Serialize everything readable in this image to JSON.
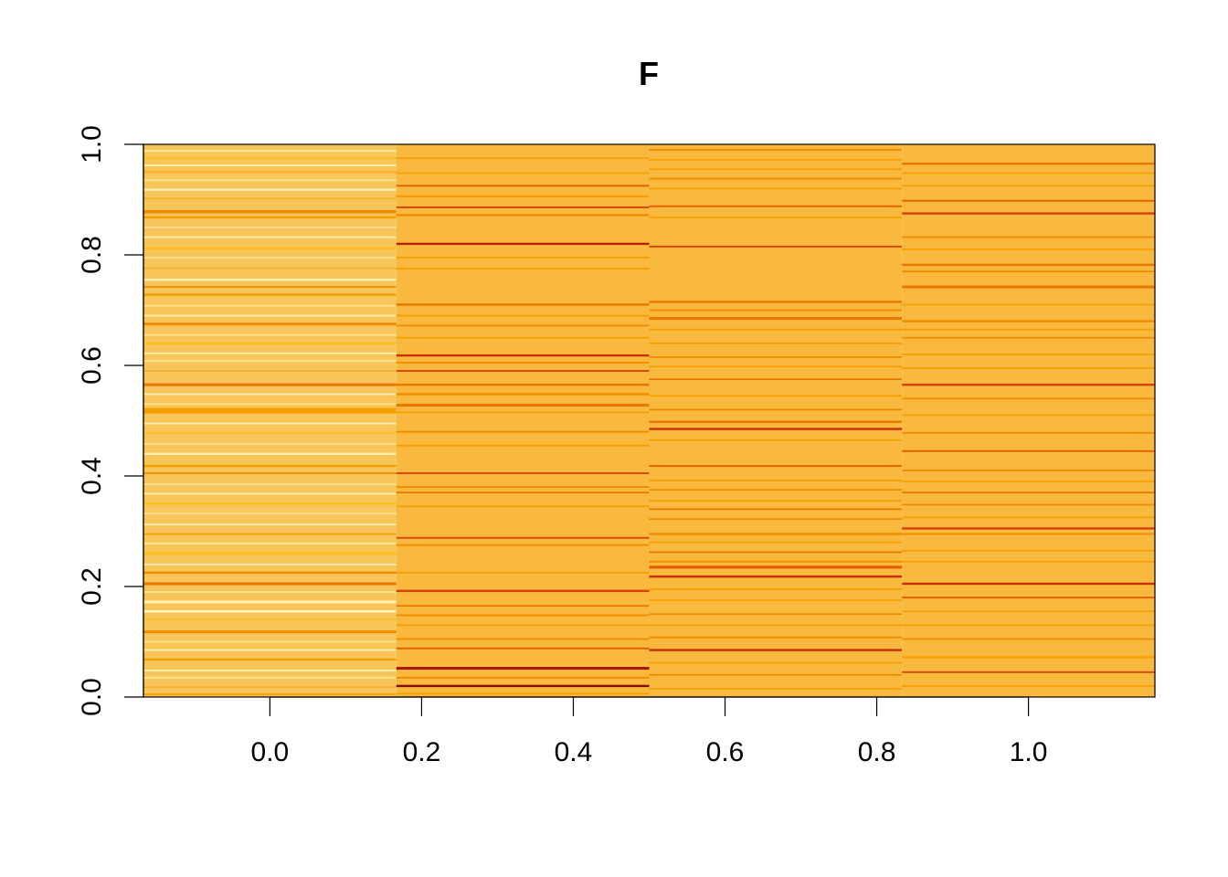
{
  "chart_data": {
    "type": "heatmap",
    "title": "F",
    "xlabel": "",
    "ylabel": "",
    "xlim": [
      -0.1667,
      1.1667
    ],
    "ylim": [
      0.0,
      1.0
    ],
    "x_ticks": [
      0.0,
      0.2,
      0.4,
      0.6,
      0.8,
      1.0
    ],
    "x_tick_labels": [
      "0.0",
      "0.2",
      "0.4",
      "0.6",
      "0.8",
      "1.0"
    ],
    "y_ticks": [
      0.0,
      0.2,
      0.4,
      0.6,
      0.8,
      1.0
    ],
    "y_tick_labels": [
      "0.0",
      "0.2",
      "0.4",
      "0.6",
      "0.8",
      "1.0"
    ],
    "columns": [
      {
        "x_from": -0.1667,
        "x_to": 0.1667,
        "base_color": "#F8C55A",
        "stripes": [
          {
            "y": 0.988,
            "h": 0.004,
            "color": "#FFE38A"
          },
          {
            "y": 0.975,
            "h": 0.004,
            "color": "#F9C020"
          },
          {
            "y": 0.962,
            "h": 0.003,
            "color": "#FFF0B0"
          },
          {
            "y": 0.95,
            "h": 0.004,
            "color": "#F8B030"
          },
          {
            "y": 0.935,
            "h": 0.003,
            "color": "#FFE38A"
          },
          {
            "y": 0.918,
            "h": 0.004,
            "color": "#FFF0B0"
          },
          {
            "y": 0.902,
            "h": 0.003,
            "color": "#F8B030"
          },
          {
            "y": 0.878,
            "h": 0.006,
            "color": "#F08C00"
          },
          {
            "y": 0.868,
            "h": 0.004,
            "color": "#F5A000"
          },
          {
            "y": 0.85,
            "h": 0.003,
            "color": "#FFE38A"
          },
          {
            "y": 0.832,
            "h": 0.003,
            "color": "#FFF0B0"
          },
          {
            "y": 0.812,
            "h": 0.004,
            "color": "#F9C020"
          },
          {
            "y": 0.795,
            "h": 0.003,
            "color": "#FFE38A"
          },
          {
            "y": 0.776,
            "h": 0.003,
            "color": "#F8B030"
          },
          {
            "y": 0.755,
            "h": 0.004,
            "color": "#FFF0B0"
          },
          {
            "y": 0.742,
            "h": 0.003,
            "color": "#F08C00"
          },
          {
            "y": 0.728,
            "h": 0.004,
            "color": "#F5A000"
          },
          {
            "y": 0.708,
            "h": 0.003,
            "color": "#FFE38A"
          },
          {
            "y": 0.69,
            "h": 0.003,
            "color": "#FFF0B0"
          },
          {
            "y": 0.675,
            "h": 0.005,
            "color": "#F08C00"
          },
          {
            "y": 0.655,
            "h": 0.003,
            "color": "#FFE38A"
          },
          {
            "y": 0.64,
            "h": 0.004,
            "color": "#F9C020"
          },
          {
            "y": 0.622,
            "h": 0.003,
            "color": "#FFF0B0"
          },
          {
            "y": 0.608,
            "h": 0.003,
            "color": "#FFE38A"
          },
          {
            "y": 0.59,
            "h": 0.003,
            "color": "#F8B030"
          },
          {
            "y": 0.565,
            "h": 0.005,
            "color": "#E87800"
          },
          {
            "y": 0.548,
            "h": 0.003,
            "color": "#FFF0B0"
          },
          {
            "y": 0.53,
            "h": 0.003,
            "color": "#FFE38A"
          },
          {
            "y": 0.518,
            "h": 0.01,
            "color": "#F5A000"
          },
          {
            "y": 0.495,
            "h": 0.003,
            "color": "#FFF0B0"
          },
          {
            "y": 0.478,
            "h": 0.003,
            "color": "#F9C020"
          },
          {
            "y": 0.458,
            "h": 0.003,
            "color": "#FFE38A"
          },
          {
            "y": 0.44,
            "h": 0.004,
            "color": "#FFF0B0"
          },
          {
            "y": 0.418,
            "h": 0.004,
            "color": "#F5A000"
          },
          {
            "y": 0.405,
            "h": 0.003,
            "color": "#F08C00"
          },
          {
            "y": 0.385,
            "h": 0.003,
            "color": "#FFE38A"
          },
          {
            "y": 0.368,
            "h": 0.003,
            "color": "#FFF0B0"
          },
          {
            "y": 0.35,
            "h": 0.004,
            "color": "#F9C020"
          },
          {
            "y": 0.332,
            "h": 0.003,
            "color": "#FFE38A"
          },
          {
            "y": 0.312,
            "h": 0.003,
            "color": "#FFF0B0"
          },
          {
            "y": 0.295,
            "h": 0.003,
            "color": "#F5A000"
          },
          {
            "y": 0.278,
            "h": 0.004,
            "color": "#FFE38A"
          },
          {
            "y": 0.26,
            "h": 0.006,
            "color": "#F9C020"
          },
          {
            "y": 0.24,
            "h": 0.003,
            "color": "#FFF0B0"
          },
          {
            "y": 0.225,
            "h": 0.004,
            "color": "#F08C00"
          },
          {
            "y": 0.205,
            "h": 0.005,
            "color": "#E87800"
          },
          {
            "y": 0.19,
            "h": 0.003,
            "color": "#FFE38A"
          },
          {
            "y": 0.172,
            "h": 0.005,
            "color": "#FFF0B0"
          },
          {
            "y": 0.155,
            "h": 0.004,
            "color": "#FFF5C8"
          },
          {
            "y": 0.14,
            "h": 0.003,
            "color": "#F9C020"
          },
          {
            "y": 0.118,
            "h": 0.005,
            "color": "#F08C00"
          },
          {
            "y": 0.1,
            "h": 0.003,
            "color": "#FFE38A"
          },
          {
            "y": 0.085,
            "h": 0.003,
            "color": "#FFF0B0"
          },
          {
            "y": 0.068,
            "h": 0.004,
            "color": "#F5A000"
          },
          {
            "y": 0.048,
            "h": 0.003,
            "color": "#FFF0B0"
          },
          {
            "y": 0.035,
            "h": 0.004,
            "color": "#FFE38A"
          },
          {
            "y": 0.018,
            "h": 0.003,
            "color": "#F8B030"
          },
          {
            "y": 0.005,
            "h": 0.003,
            "color": "#F5A000"
          }
        ]
      },
      {
        "x_from": 0.1667,
        "x_to": 0.5,
        "base_color": "#F8B93E",
        "stripes": [
          {
            "y": 0.975,
            "h": 0.003,
            "color": "#F5A000"
          },
          {
            "y": 0.948,
            "h": 0.003,
            "color": "#F5A000"
          },
          {
            "y": 0.925,
            "h": 0.003,
            "color": "#E85A00"
          },
          {
            "y": 0.906,
            "h": 0.004,
            "color": "#F5A000"
          },
          {
            "y": 0.886,
            "h": 0.003,
            "color": "#D84000"
          },
          {
            "y": 0.872,
            "h": 0.004,
            "color": "#F08C00"
          },
          {
            "y": 0.82,
            "h": 0.004,
            "color": "#B82000"
          },
          {
            "y": 0.795,
            "h": 0.003,
            "color": "#F5A000"
          },
          {
            "y": 0.775,
            "h": 0.003,
            "color": "#F5A000"
          },
          {
            "y": 0.71,
            "h": 0.004,
            "color": "#E87800"
          },
          {
            "y": 0.69,
            "h": 0.003,
            "color": "#F5A000"
          },
          {
            "y": 0.672,
            "h": 0.003,
            "color": "#F08C00"
          },
          {
            "y": 0.65,
            "h": 0.003,
            "color": "#F5A000"
          },
          {
            "y": 0.618,
            "h": 0.004,
            "color": "#C83000"
          },
          {
            "y": 0.605,
            "h": 0.003,
            "color": "#F08C00"
          },
          {
            "y": 0.59,
            "h": 0.003,
            "color": "#D84000"
          },
          {
            "y": 0.565,
            "h": 0.004,
            "color": "#E87800"
          },
          {
            "y": 0.548,
            "h": 0.004,
            "color": "#F08C00"
          },
          {
            "y": 0.528,
            "h": 0.005,
            "color": "#E87800"
          },
          {
            "y": 0.515,
            "h": 0.003,
            "color": "#F5A000"
          },
          {
            "y": 0.48,
            "h": 0.003,
            "color": "#F08C00"
          },
          {
            "y": 0.455,
            "h": 0.003,
            "color": "#F5A000"
          },
          {
            "y": 0.405,
            "h": 0.003,
            "color": "#D84000"
          },
          {
            "y": 0.38,
            "h": 0.003,
            "color": "#F08C00"
          },
          {
            "y": 0.37,
            "h": 0.003,
            "color": "#E87800"
          },
          {
            "y": 0.345,
            "h": 0.003,
            "color": "#F5A000"
          },
          {
            "y": 0.288,
            "h": 0.003,
            "color": "#D84000"
          },
          {
            "y": 0.275,
            "h": 0.003,
            "color": "#F08C00"
          },
          {
            "y": 0.225,
            "h": 0.003,
            "color": "#F5A000"
          },
          {
            "y": 0.192,
            "h": 0.004,
            "color": "#D84000"
          },
          {
            "y": 0.165,
            "h": 0.003,
            "color": "#E87800"
          },
          {
            "y": 0.148,
            "h": 0.003,
            "color": "#F08C00"
          },
          {
            "y": 0.13,
            "h": 0.003,
            "color": "#F5A000"
          },
          {
            "y": 0.105,
            "h": 0.003,
            "color": "#F08C00"
          },
          {
            "y": 0.088,
            "h": 0.003,
            "color": "#E85A00"
          },
          {
            "y": 0.052,
            "h": 0.005,
            "color": "#A81800"
          },
          {
            "y": 0.035,
            "h": 0.003,
            "color": "#F08C00"
          },
          {
            "y": 0.02,
            "h": 0.004,
            "color": "#801000"
          },
          {
            "y": 0.006,
            "h": 0.003,
            "color": "#F5A000"
          }
        ]
      },
      {
        "x_from": 0.5,
        "x_to": 0.8333,
        "base_color": "#F8B93E",
        "stripes": [
          {
            "y": 0.99,
            "h": 0.003,
            "color": "#F08C00"
          },
          {
            "y": 0.972,
            "h": 0.003,
            "color": "#F5A000"
          },
          {
            "y": 0.955,
            "h": 0.003,
            "color": "#F5A000"
          },
          {
            "y": 0.938,
            "h": 0.003,
            "color": "#F08C00"
          },
          {
            "y": 0.92,
            "h": 0.003,
            "color": "#F5A000"
          },
          {
            "y": 0.888,
            "h": 0.003,
            "color": "#E85A00"
          },
          {
            "y": 0.868,
            "h": 0.003,
            "color": "#F5A000"
          },
          {
            "y": 0.815,
            "h": 0.003,
            "color": "#D84000"
          },
          {
            "y": 0.715,
            "h": 0.004,
            "color": "#E87800"
          },
          {
            "y": 0.7,
            "h": 0.003,
            "color": "#F08C00"
          },
          {
            "y": 0.685,
            "h": 0.005,
            "color": "#E87800"
          },
          {
            "y": 0.665,
            "h": 0.003,
            "color": "#F5A000"
          },
          {
            "y": 0.64,
            "h": 0.003,
            "color": "#F5A000"
          },
          {
            "y": 0.615,
            "h": 0.003,
            "color": "#F08C00"
          },
          {
            "y": 0.598,
            "h": 0.003,
            "color": "#F5A000"
          },
          {
            "y": 0.575,
            "h": 0.003,
            "color": "#E87800"
          },
          {
            "y": 0.545,
            "h": 0.003,
            "color": "#F5A000"
          },
          {
            "y": 0.52,
            "h": 0.003,
            "color": "#F08C00"
          },
          {
            "y": 0.498,
            "h": 0.004,
            "color": "#E87800"
          },
          {
            "y": 0.485,
            "h": 0.004,
            "color": "#C83000"
          },
          {
            "y": 0.465,
            "h": 0.003,
            "color": "#F5A000"
          },
          {
            "y": 0.418,
            "h": 0.003,
            "color": "#E85A00"
          },
          {
            "y": 0.392,
            "h": 0.003,
            "color": "#F5A000"
          },
          {
            "y": 0.375,
            "h": 0.003,
            "color": "#F08C00"
          },
          {
            "y": 0.355,
            "h": 0.003,
            "color": "#F5A000"
          },
          {
            "y": 0.34,
            "h": 0.003,
            "color": "#E87800"
          },
          {
            "y": 0.322,
            "h": 0.003,
            "color": "#F08C00"
          },
          {
            "y": 0.295,
            "h": 0.004,
            "color": "#F08C00"
          },
          {
            "y": 0.28,
            "h": 0.003,
            "color": "#F5A000"
          },
          {
            "y": 0.262,
            "h": 0.003,
            "color": "#E87800"
          },
          {
            "y": 0.245,
            "h": 0.003,
            "color": "#F08C00"
          },
          {
            "y": 0.235,
            "h": 0.005,
            "color": "#E85A00"
          },
          {
            "y": 0.218,
            "h": 0.004,
            "color": "#C83000"
          },
          {
            "y": 0.195,
            "h": 0.003,
            "color": "#F5A000"
          },
          {
            "y": 0.175,
            "h": 0.003,
            "color": "#F5A000"
          },
          {
            "y": 0.15,
            "h": 0.003,
            "color": "#F08C00"
          },
          {
            "y": 0.13,
            "h": 0.003,
            "color": "#F5A000"
          },
          {
            "y": 0.108,
            "h": 0.003,
            "color": "#F08C00"
          },
          {
            "y": 0.085,
            "h": 0.004,
            "color": "#C83000"
          },
          {
            "y": 0.062,
            "h": 0.003,
            "color": "#F5A000"
          },
          {
            "y": 0.04,
            "h": 0.003,
            "color": "#F08C00"
          },
          {
            "y": 0.015,
            "h": 0.003,
            "color": "#F5A000"
          }
        ]
      },
      {
        "x_from": 0.8333,
        "x_to": 1.1667,
        "base_color": "#F8B93E",
        "stripes": [
          {
            "y": 0.965,
            "h": 0.004,
            "color": "#E87800"
          },
          {
            "y": 0.948,
            "h": 0.003,
            "color": "#F5A000"
          },
          {
            "y": 0.925,
            "h": 0.003,
            "color": "#F5A000"
          },
          {
            "y": 0.898,
            "h": 0.003,
            "color": "#E85A00"
          },
          {
            "y": 0.875,
            "h": 0.004,
            "color": "#D84000"
          },
          {
            "y": 0.832,
            "h": 0.003,
            "color": "#F08C00"
          },
          {
            "y": 0.81,
            "h": 0.003,
            "color": "#F5A000"
          },
          {
            "y": 0.782,
            "h": 0.004,
            "color": "#E87800"
          },
          {
            "y": 0.77,
            "h": 0.003,
            "color": "#F08C00"
          },
          {
            "y": 0.742,
            "h": 0.005,
            "color": "#E87800"
          },
          {
            "y": 0.71,
            "h": 0.003,
            "color": "#F5A000"
          },
          {
            "y": 0.68,
            "h": 0.004,
            "color": "#F08C00"
          },
          {
            "y": 0.665,
            "h": 0.003,
            "color": "#F5A000"
          },
          {
            "y": 0.65,
            "h": 0.003,
            "color": "#F08C00"
          },
          {
            "y": 0.62,
            "h": 0.003,
            "color": "#F5A000"
          },
          {
            "y": 0.595,
            "h": 0.003,
            "color": "#F5A000"
          },
          {
            "y": 0.565,
            "h": 0.004,
            "color": "#D84000"
          },
          {
            "y": 0.54,
            "h": 0.003,
            "color": "#F08C00"
          },
          {
            "y": 0.51,
            "h": 0.003,
            "color": "#F5A000"
          },
          {
            "y": 0.478,
            "h": 0.003,
            "color": "#F08C00"
          },
          {
            "y": 0.445,
            "h": 0.003,
            "color": "#E85A00"
          },
          {
            "y": 0.41,
            "h": 0.003,
            "color": "#F08C00"
          },
          {
            "y": 0.39,
            "h": 0.003,
            "color": "#F5A000"
          },
          {
            "y": 0.37,
            "h": 0.003,
            "color": "#E87800"
          },
          {
            "y": 0.348,
            "h": 0.003,
            "color": "#F08C00"
          },
          {
            "y": 0.325,
            "h": 0.003,
            "color": "#F5A000"
          },
          {
            "y": 0.305,
            "h": 0.004,
            "color": "#D84000"
          },
          {
            "y": 0.295,
            "h": 0.003,
            "color": "#F08C00"
          },
          {
            "y": 0.265,
            "h": 0.003,
            "color": "#F5A000"
          },
          {
            "y": 0.245,
            "h": 0.003,
            "color": "#F5A000"
          },
          {
            "y": 0.205,
            "h": 0.004,
            "color": "#C83000"
          },
          {
            "y": 0.18,
            "h": 0.003,
            "color": "#E85A00"
          },
          {
            "y": 0.155,
            "h": 0.003,
            "color": "#F5A000"
          },
          {
            "y": 0.13,
            "h": 0.003,
            "color": "#F5A000"
          },
          {
            "y": 0.105,
            "h": 0.003,
            "color": "#F08C00"
          },
          {
            "y": 0.072,
            "h": 0.004,
            "color": "#F5A000"
          },
          {
            "y": 0.045,
            "h": 0.003,
            "color": "#D84000"
          },
          {
            "y": 0.02,
            "h": 0.003,
            "color": "#F5A000"
          }
        ]
      }
    ]
  }
}
